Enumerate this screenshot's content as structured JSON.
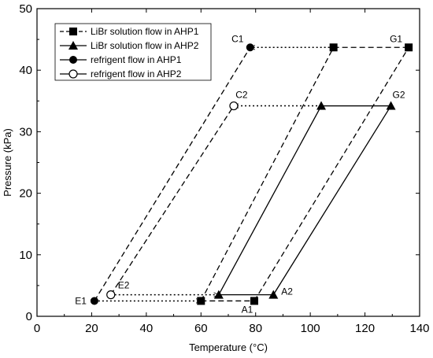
{
  "chart_data": {
    "type": "line",
    "xlabel": "Temperature (°C)",
    "ylabel": "Pressure (kPa)",
    "xlim": [
      0,
      140
    ],
    "ylim": [
      0,
      50
    ],
    "xticks": [
      0,
      20,
      40,
      60,
      80,
      100,
      120,
      140
    ],
    "yticks": [
      0,
      10,
      20,
      30,
      40,
      50
    ],
    "grid": false,
    "legend_position": "top-left",
    "legend": [
      {
        "label": "LiBr solution flow in AHP1",
        "marker": "square",
        "line": "dashed"
      },
      {
        "label": "LiBr solution flow in AHP2",
        "marker": "triangle",
        "line": "solid"
      },
      {
        "label": "refrigent flow in AHP1",
        "marker": "circle-filled",
        "line": "solid"
      },
      {
        "label": "refrigent flow in AHP2",
        "marker": "circle-open",
        "line": "solid"
      }
    ],
    "lines": [
      {
        "group": "AHP1",
        "style": "dashed",
        "points": [
          [
            21,
            2.5
          ],
          [
            78,
            43.7
          ]
        ]
      },
      {
        "group": "AHP1",
        "style": "dashed",
        "points": [
          [
            60,
            2.5
          ],
          [
            108.5,
            43.7
          ]
        ]
      },
      {
        "group": "AHP1",
        "style": "dashed",
        "points": [
          [
            79.5,
            2.5
          ],
          [
            136,
            43.7
          ]
        ]
      },
      {
        "group": "AHP1",
        "style": "dashed",
        "points": [
          [
            108.5,
            43.7
          ],
          [
            136,
            43.7
          ]
        ]
      },
      {
        "group": "AHP1",
        "style": "dashed",
        "points": [
          [
            60,
            2.5
          ],
          [
            79.5,
            2.5
          ]
        ]
      },
      {
        "group": "AHP2",
        "style": "dashed",
        "points": [
          [
            27,
            3.5
          ],
          [
            72,
            34.2
          ]
        ]
      },
      {
        "group": "AHP2",
        "style": "solid",
        "points": [
          [
            66.5,
            3.5
          ],
          [
            104,
            34.2
          ]
        ]
      },
      {
        "group": "AHP2",
        "style": "solid",
        "points": [
          [
            86.5,
            3.5
          ],
          [
            129.5,
            34.2
          ]
        ]
      },
      {
        "group": "AHP2",
        "style": "solid",
        "points": [
          [
            104,
            34.2
          ],
          [
            129.5,
            34.2
          ]
        ]
      },
      {
        "group": "AHP2",
        "style": "solid",
        "points": [
          [
            66.5,
            3.5
          ],
          [
            86.5,
            3.5
          ]
        ]
      }
    ],
    "arrows": [
      {
        "from": [
          108.5,
          43.7
        ],
        "to": [
          78,
          43.7
        ]
      },
      {
        "from": [
          104,
          34.2
        ],
        "to": [
          72,
          34.2
        ]
      },
      {
        "from": [
          21,
          2.5
        ],
        "to": [
          60,
          2.5
        ]
      },
      {
        "from": [
          27,
          3.5
        ],
        "to": [
          66.5,
          3.5
        ]
      }
    ],
    "markers": [
      {
        "x": 136,
        "y": 43.7,
        "shape": "square"
      },
      {
        "x": 108.5,
        "y": 43.7,
        "shape": "square"
      },
      {
        "x": 60,
        "y": 2.5,
        "shape": "square"
      },
      {
        "x": 79.5,
        "y": 2.5,
        "shape": "square"
      },
      {
        "x": 129.5,
        "y": 34.2,
        "shape": "triangle"
      },
      {
        "x": 104,
        "y": 34.2,
        "shape": "triangle"
      },
      {
        "x": 66.5,
        "y": 3.5,
        "shape": "triangle"
      },
      {
        "x": 86.5,
        "y": 3.5,
        "shape": "triangle"
      },
      {
        "x": 78,
        "y": 43.7,
        "shape": "circle-filled"
      },
      {
        "x": 21,
        "y": 2.5,
        "shape": "circle-filled"
      },
      {
        "x": 72,
        "y": 34.2,
        "shape": "circle-open"
      },
      {
        "x": 27,
        "y": 3.5,
        "shape": "circle-open"
      }
    ],
    "annotations": [
      {
        "text": "G1",
        "x": 136,
        "y": 43.7,
        "pos": "above-left"
      },
      {
        "text": "C1",
        "x": 78,
        "y": 43.7,
        "pos": "above-left"
      },
      {
        "text": "C2",
        "x": 72,
        "y": 34.2,
        "pos": "above"
      },
      {
        "text": "G2",
        "x": 129.5,
        "y": 34.2,
        "pos": "above"
      },
      {
        "text": "E1",
        "x": 21,
        "y": 2.5,
        "pos": "left"
      },
      {
        "text": "E2",
        "x": 27,
        "y": 3.5,
        "pos": "above-right"
      },
      {
        "text": "A1",
        "x": 79.5,
        "y": 2.5,
        "pos": "below-left"
      },
      {
        "text": "A2",
        "x": 86.5,
        "y": 3.5,
        "pos": "right"
      }
    ]
  }
}
